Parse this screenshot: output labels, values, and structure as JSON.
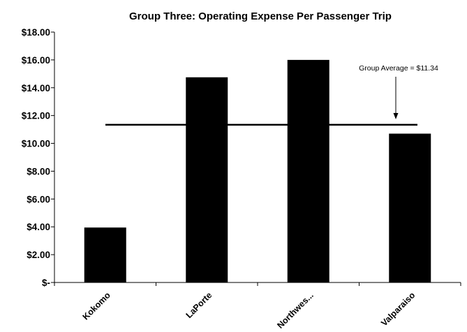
{
  "chart_data": {
    "type": "bar",
    "title": "Group Three:  Operating Expense Per Passenger Trip",
    "xlabel": "",
    "ylabel": "",
    "categories": [
      "Kokomo",
      "LaPorte",
      "Northwes...",
      "Valparaiso"
    ],
    "values": [
      3.95,
      14.75,
      16.0,
      10.7
    ],
    "ylim": [
      0,
      18
    ],
    "yticks": [
      0,
      2,
      4,
      6,
      8,
      10,
      12,
      14,
      16,
      18
    ],
    "ytick_labels": [
      "$-",
      "$2.00",
      "$4.00",
      "$6.00",
      "$8.00",
      "$10.00",
      "$12.00",
      "$14.00",
      "$16.00",
      "$18.00"
    ],
    "bar_color": "#000000",
    "grid": false,
    "legend": "none",
    "reference_line": {
      "value": 11.34,
      "label": "Group Average = $11.34"
    }
  }
}
